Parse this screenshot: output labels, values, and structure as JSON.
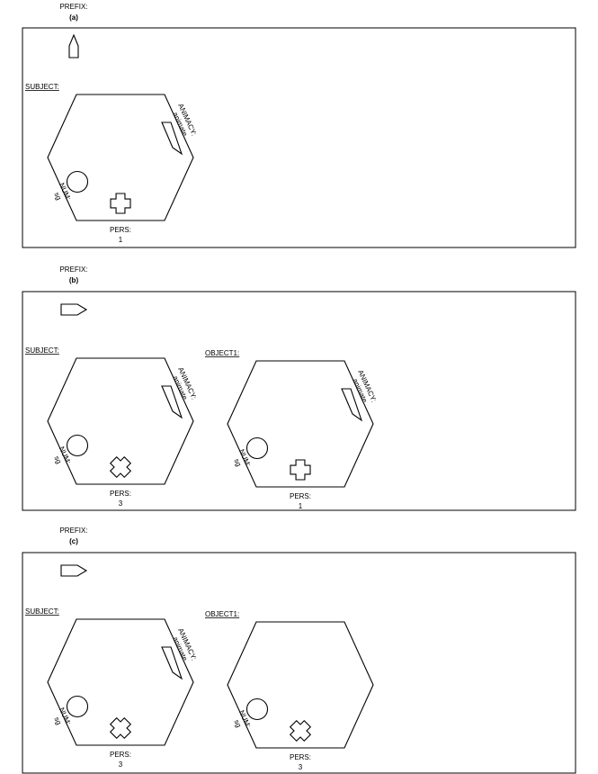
{
  "panels": [
    {
      "id": "a",
      "letter": "(a)",
      "prefix_label": "PREFIX:",
      "prefix_marker": "narrow-pentagon",
      "subject": {
        "label": "SUBJECT:",
        "animacy_label": "ANIMACY:",
        "animacy_value": "animate",
        "num_label": "NUM:",
        "num_value": "sg",
        "pers_label": "PERS:",
        "pers_value": "1",
        "cross_rotated": false
      }
    },
    {
      "id": "b",
      "letter": "(b)",
      "prefix_label": "PREFIX:",
      "prefix_marker": "wide-pentagon",
      "subject": {
        "label": "SUBJECT:",
        "animacy_label": "ANIMACY:",
        "animacy_value": "animate",
        "num_label": "NUM:",
        "num_value": "sg",
        "pers_label": "PERS:",
        "pers_value": "3",
        "cross_rotated": true
      },
      "object": {
        "label": "OBJECT1:",
        "animacy_label": "ANIMACY:",
        "animacy_value": "animate",
        "num_label": "NUM:",
        "num_value": "sg",
        "pers_label": "PERS:",
        "pers_value": "1",
        "cross_rotated": false
      }
    },
    {
      "id": "c",
      "letter": "(c)",
      "prefix_label": "PREFIX:",
      "prefix_marker": "wide-pentagon",
      "subject": {
        "label": "SUBJECT:",
        "animacy_label": "ANIMACY:",
        "animacy_value": "animate",
        "num_label": "NUM:",
        "num_value": "sg",
        "pers_label": "PERS:",
        "pers_value": "3",
        "cross_rotated": true
      },
      "object": {
        "label": "OBJECT1:",
        "num_label": "NUM:",
        "num_value": "sg",
        "pers_label": "PERS:",
        "pers_value": "3",
        "cross_rotated": true
      }
    }
  ]
}
